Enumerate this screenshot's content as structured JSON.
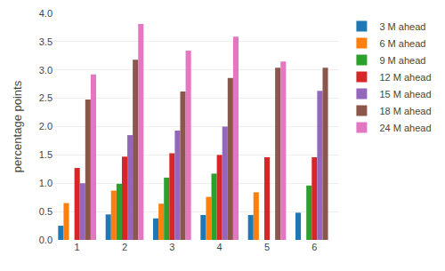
{
  "chart_data": {
    "type": "bar",
    "categories": [
      1,
      2,
      3,
      4,
      5,
      6
    ],
    "series": [
      {
        "name": "3 M ahead",
        "values": [
          0.25,
          0.45,
          0.38,
          0.44,
          0.44,
          0.48
        ]
      },
      {
        "name": "6 M ahead",
        "values": [
          0.65,
          0.87,
          0.64,
          0.76,
          0.84,
          null
        ]
      },
      {
        "name": "9 M ahead",
        "values": [
          null,
          0.99,
          1.1,
          1.17,
          null,
          0.96
        ]
      },
      {
        "name": "12 M ahead",
        "values": [
          1.27,
          1.47,
          1.53,
          1.5,
          1.46,
          1.46
        ]
      },
      {
        "name": "15 M ahead",
        "values": [
          1.0,
          1.85,
          1.93,
          2.0,
          null,
          2.63
        ]
      },
      {
        "name": "18 M ahead",
        "values": [
          2.48,
          3.18,
          2.62,
          2.86,
          3.04,
          3.04
        ]
      },
      {
        "name": "24 M ahead",
        "values": [
          2.92,
          3.81,
          3.34,
          3.59,
          3.15,
          null
        ]
      }
    ],
    "ylabel": "percentage points",
    "ylim": [
      0.0,
      4.0
    ],
    "yticks": [
      {
        "value": 0.0,
        "label": "0.0"
      },
      0.5,
      {
        "value": 1.0,
        "label": "1.0"
      },
      1.5,
      {
        "value": 2.0,
        "label": "2.0"
      },
      2.5,
      {
        "value": 3.0,
        "label": "3.0"
      },
      3.5,
      {
        "value": 4.0,
        "label": "4.0"
      }
    ],
    "grid": true,
    "legend": "right"
  }
}
